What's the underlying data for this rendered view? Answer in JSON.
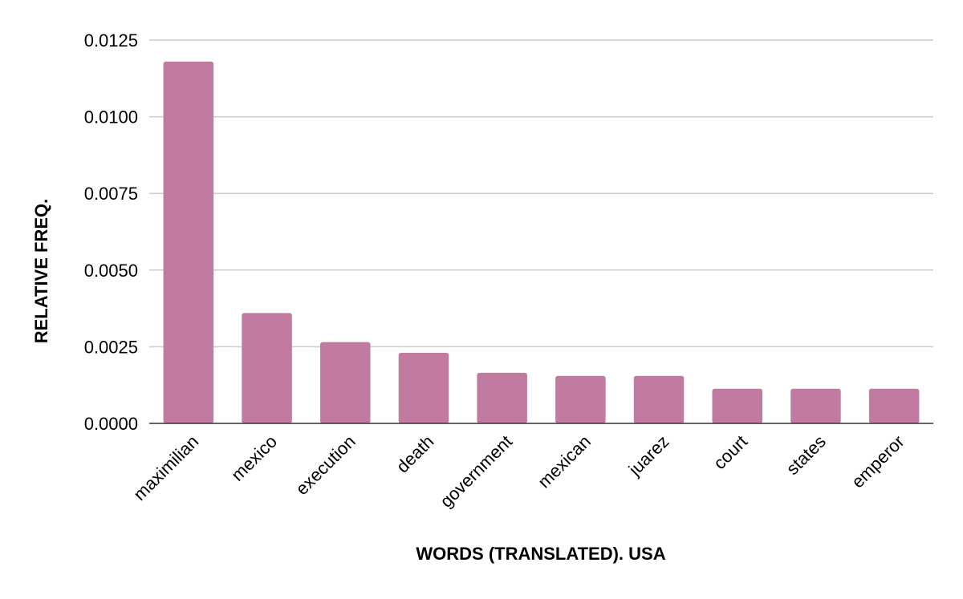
{
  "chart_data": {
    "type": "bar",
    "title": "",
    "xlabel": "WORDS (TRANSLATED). USA",
    "ylabel": "RELATIVE FREQ.",
    "categories": [
      "maximilian",
      "mexico",
      "execution",
      "death",
      "government",
      "mexican",
      "juarez",
      "court",
      "states",
      "emperor"
    ],
    "values": [
      0.0118,
      0.0036,
      0.00265,
      0.0023,
      0.00165,
      0.00155,
      0.00155,
      0.00113,
      0.00113,
      0.00113
    ],
    "ylim": [
      0,
      0.0125
    ],
    "yticks": [
      "0.0000",
      "0.0025",
      "0.0050",
      "0.0075",
      "0.0100",
      "0.0125"
    ],
    "ytick_values": [
      0,
      0.0025,
      0.005,
      0.0075,
      0.01,
      0.0125
    ],
    "grid": true,
    "legend": "none",
    "bar_color": "#c17ba0"
  }
}
